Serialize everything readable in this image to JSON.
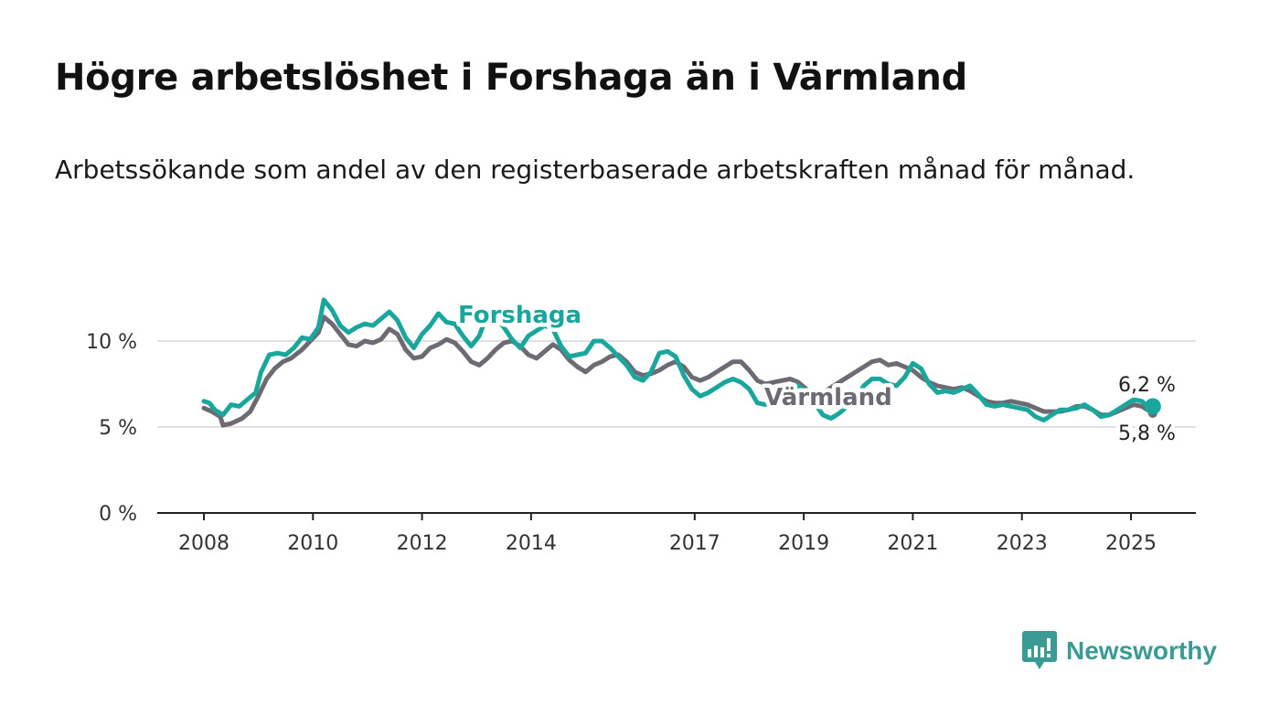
{
  "title": "Högre arbetslöshet i Forshaga än i Värmland",
  "subtitle": "Arbetssökande som andel av den registerbaserade arbetskraften månad för månad.",
  "brand": {
    "name": "Newsworthy",
    "icon": "newsworthy-logo-icon",
    "color": "#3a9a94"
  },
  "chart_data": {
    "type": "line",
    "xlabel": "",
    "ylabel": "",
    "xlim": [
      2008,
      2025.5
    ],
    "ylim": [
      0,
      13
    ],
    "grid": true,
    "y_ticks": [
      {
        "value": 0,
        "label": "0 %"
      },
      {
        "value": 5,
        "label": "5 %"
      },
      {
        "value": 10,
        "label": "10 %"
      }
    ],
    "x_ticks": [
      {
        "value": 2008,
        "label": "2008"
      },
      {
        "value": 2010,
        "label": "2010"
      },
      {
        "value": 2012,
        "label": "2012"
      },
      {
        "value": 2014,
        "label": "2014"
      },
      {
        "value": 2017,
        "label": "2017"
      },
      {
        "value": 2019,
        "label": "2019"
      },
      {
        "value": 2021,
        "label": "2021"
      },
      {
        "value": 2023,
        "label": "2023"
      },
      {
        "value": 2025,
        "label": "2025"
      }
    ],
    "series": [
      {
        "name": "Värmland",
        "color": "#6e6a73",
        "end_label": "5,8 %",
        "points": [
          [
            2008.0,
            6.1
          ],
          [
            2008.15,
            5.9
          ],
          [
            2008.3,
            5.6
          ],
          [
            2008.35,
            5.1
          ],
          [
            2008.5,
            5.2
          ],
          [
            2008.7,
            5.5
          ],
          [
            2008.85,
            5.9
          ],
          [
            2009.0,
            6.8
          ],
          [
            2009.15,
            7.8
          ],
          [
            2009.3,
            8.4
          ],
          [
            2009.45,
            8.8
          ],
          [
            2009.6,
            9.0
          ],
          [
            2009.8,
            9.5
          ],
          [
            2009.95,
            10.0
          ],
          [
            2010.1,
            10.5
          ],
          [
            2010.2,
            11.4
          ],
          [
            2010.35,
            11.0
          ],
          [
            2010.5,
            10.4
          ],
          [
            2010.65,
            9.8
          ],
          [
            2010.8,
            9.7
          ],
          [
            2010.95,
            10.0
          ],
          [
            2011.1,
            9.9
          ],
          [
            2011.25,
            10.1
          ],
          [
            2011.4,
            10.7
          ],
          [
            2011.55,
            10.4
          ],
          [
            2011.7,
            9.5
          ],
          [
            2011.85,
            9.0
          ],
          [
            2012.0,
            9.1
          ],
          [
            2012.15,
            9.6
          ],
          [
            2012.3,
            9.8
          ],
          [
            2012.45,
            10.1
          ],
          [
            2012.6,
            9.9
          ],
          [
            2012.75,
            9.4
          ],
          [
            2012.9,
            8.8
          ],
          [
            2013.05,
            8.6
          ],
          [
            2013.2,
            9.0
          ],
          [
            2013.35,
            9.5
          ],
          [
            2013.5,
            9.9
          ],
          [
            2013.65,
            10.0
          ],
          [
            2013.8,
            9.7
          ],
          [
            2013.95,
            9.2
          ],
          [
            2014.1,
            9.0
          ],
          [
            2014.25,
            9.4
          ],
          [
            2014.4,
            9.8
          ],
          [
            2014.55,
            9.5
          ],
          [
            2014.7,
            8.9
          ],
          [
            2014.85,
            8.5
          ],
          [
            2015.0,
            8.2
          ],
          [
            2015.15,
            8.6
          ],
          [
            2015.3,
            8.8
          ],
          [
            2015.45,
            9.1
          ],
          [
            2015.6,
            9.2
          ],
          [
            2015.75,
            8.8
          ],
          [
            2015.9,
            8.2
          ],
          [
            2016.05,
            8.0
          ],
          [
            2016.2,
            8.1
          ],
          [
            2016.35,
            8.3
          ],
          [
            2016.5,
            8.6
          ],
          [
            2016.65,
            8.8
          ],
          [
            2016.8,
            8.5
          ],
          [
            2016.95,
            7.9
          ],
          [
            2017.1,
            7.7
          ],
          [
            2017.25,
            7.9
          ],
          [
            2017.4,
            8.2
          ],
          [
            2017.55,
            8.5
          ],
          [
            2017.7,
            8.8
          ],
          [
            2017.85,
            8.8
          ],
          [
            2018.0,
            8.3
          ],
          [
            2018.15,
            7.7
          ],
          [
            2018.3,
            7.5
          ],
          [
            2018.45,
            7.6
          ],
          [
            2018.6,
            7.7
          ],
          [
            2018.75,
            7.8
          ],
          [
            2018.9,
            7.6
          ],
          [
            2019.05,
            7.2
          ],
          [
            2019.2,
            6.9
          ],
          [
            2019.35,
            7.0
          ],
          [
            2019.5,
            7.3
          ],
          [
            2019.65,
            7.6
          ],
          [
            2019.8,
            7.9
          ],
          [
            2019.95,
            8.2
          ],
          [
            2020.1,
            8.5
          ],
          [
            2020.25,
            8.8
          ],
          [
            2020.4,
            8.9
          ],
          [
            2020.55,
            8.6
          ],
          [
            2020.7,
            8.7
          ],
          [
            2020.85,
            8.5
          ],
          [
            2021.0,
            8.3
          ],
          [
            2021.15,
            7.9
          ],
          [
            2021.3,
            7.6
          ],
          [
            2021.45,
            7.4
          ],
          [
            2021.6,
            7.3
          ],
          [
            2021.75,
            7.2
          ],
          [
            2021.9,
            7.3
          ],
          [
            2022.05,
            7.1
          ],
          [
            2022.2,
            6.8
          ],
          [
            2022.35,
            6.5
          ],
          [
            2022.5,
            6.4
          ],
          [
            2022.65,
            6.4
          ],
          [
            2022.8,
            6.5
          ],
          [
            2022.95,
            6.4
          ],
          [
            2023.1,
            6.3
          ],
          [
            2023.25,
            6.1
          ],
          [
            2023.4,
            5.9
          ],
          [
            2023.55,
            5.9
          ],
          [
            2023.7,
            5.9
          ],
          [
            2023.85,
            6.0
          ],
          [
            2024.0,
            6.2
          ],
          [
            2024.15,
            6.2
          ],
          [
            2024.3,
            6.0
          ],
          [
            2024.45,
            5.7
          ],
          [
            2024.6,
            5.7
          ],
          [
            2024.75,
            5.9
          ],
          [
            2024.9,
            6.1
          ],
          [
            2025.05,
            6.3
          ],
          [
            2025.2,
            6.2
          ],
          [
            2025.3,
            6.0
          ],
          [
            2025.4,
            5.8
          ]
        ]
      },
      {
        "name": "Forshaga",
        "color": "#19a69c",
        "end_label": "6,2 %",
        "points": [
          [
            2008.0,
            6.5
          ],
          [
            2008.1,
            6.4
          ],
          [
            2008.2,
            6.0
          ],
          [
            2008.35,
            5.7
          ],
          [
            2008.5,
            6.3
          ],
          [
            2008.65,
            6.2
          ],
          [
            2008.8,
            6.6
          ],
          [
            2008.95,
            7.0
          ],
          [
            2009.05,
            8.2
          ],
          [
            2009.2,
            9.2
          ],
          [
            2009.35,
            9.3
          ],
          [
            2009.5,
            9.2
          ],
          [
            2009.65,
            9.6
          ],
          [
            2009.8,
            10.2
          ],
          [
            2009.95,
            10.1
          ],
          [
            2010.1,
            10.8
          ],
          [
            2010.2,
            12.4
          ],
          [
            2010.35,
            11.8
          ],
          [
            2010.5,
            10.9
          ],
          [
            2010.65,
            10.5
          ],
          [
            2010.8,
            10.8
          ],
          [
            2010.95,
            11.0
          ],
          [
            2011.1,
            10.9
          ],
          [
            2011.25,
            11.3
          ],
          [
            2011.4,
            11.7
          ],
          [
            2011.55,
            11.2
          ],
          [
            2011.7,
            10.2
          ],
          [
            2011.85,
            9.6
          ],
          [
            2012.0,
            10.4
          ],
          [
            2012.15,
            10.9
          ],
          [
            2012.3,
            11.6
          ],
          [
            2012.45,
            11.1
          ],
          [
            2012.6,
            11.0
          ],
          [
            2012.75,
            10.3
          ],
          [
            2012.9,
            9.7
          ],
          [
            2013.05,
            10.3
          ],
          [
            2013.2,
            11.6
          ],
          [
            2013.35,
            11.4
          ],
          [
            2013.5,
            10.8
          ],
          [
            2013.65,
            10.1
          ],
          [
            2013.8,
            9.6
          ],
          [
            2013.95,
            10.3
          ],
          [
            2014.1,
            10.6
          ],
          [
            2014.25,
            10.9
          ],
          [
            2014.4,
            10.7
          ],
          [
            2014.55,
            9.7
          ],
          [
            2014.7,
            9.1
          ],
          [
            2014.85,
            9.2
          ],
          [
            2015.0,
            9.3
          ],
          [
            2015.15,
            10.0
          ],
          [
            2015.3,
            10.0
          ],
          [
            2015.45,
            9.6
          ],
          [
            2015.6,
            9.1
          ],
          [
            2015.75,
            8.6
          ],
          [
            2015.9,
            7.9
          ],
          [
            2016.05,
            7.7
          ],
          [
            2016.2,
            8.2
          ],
          [
            2016.35,
            9.3
          ],
          [
            2016.5,
            9.4
          ],
          [
            2016.65,
            9.1
          ],
          [
            2016.8,
            8.0
          ],
          [
            2016.95,
            7.2
          ],
          [
            2017.1,
            6.8
          ],
          [
            2017.25,
            7.0
          ],
          [
            2017.4,
            7.3
          ],
          [
            2017.55,
            7.6
          ],
          [
            2017.7,
            7.8
          ],
          [
            2017.85,
            7.6
          ],
          [
            2018.0,
            7.2
          ],
          [
            2018.15,
            6.4
          ],
          [
            2018.3,
            6.3
          ],
          [
            2018.45,
            6.5
          ],
          [
            2018.6,
            6.6
          ],
          [
            2018.75,
            7.0
          ],
          [
            2018.9,
            7.4
          ],
          [
            2019.05,
            7.0
          ],
          [
            2019.2,
            6.4
          ],
          [
            2019.35,
            5.7
          ],
          [
            2019.5,
            5.5
          ],
          [
            2019.65,
            5.8
          ],
          [
            2019.8,
            6.2
          ],
          [
            2019.95,
            6.6
          ],
          [
            2020.1,
            7.4
          ],
          [
            2020.25,
            7.8
          ],
          [
            2020.4,
            7.8
          ],
          [
            2020.55,
            7.5
          ],
          [
            2020.7,
            7.4
          ],
          [
            2020.85,
            7.9
          ],
          [
            2021.0,
            8.7
          ],
          [
            2021.15,
            8.4
          ],
          [
            2021.3,
            7.5
          ],
          [
            2021.45,
            7.0
          ],
          [
            2021.6,
            7.1
          ],
          [
            2021.75,
            7.0
          ],
          [
            2021.9,
            7.2
          ],
          [
            2022.05,
            7.4
          ],
          [
            2022.2,
            6.9
          ],
          [
            2022.35,
            6.3
          ],
          [
            2022.5,
            6.2
          ],
          [
            2022.65,
            6.3
          ],
          [
            2022.8,
            6.2
          ],
          [
            2022.95,
            6.1
          ],
          [
            2023.1,
            6.0
          ],
          [
            2023.25,
            5.6
          ],
          [
            2023.4,
            5.4
          ],
          [
            2023.55,
            5.7
          ],
          [
            2023.7,
            6.0
          ],
          [
            2023.85,
            6.0
          ],
          [
            2024.0,
            6.1
          ],
          [
            2024.15,
            6.3
          ],
          [
            2024.3,
            6.0
          ],
          [
            2024.45,
            5.6
          ],
          [
            2024.6,
            5.7
          ],
          [
            2024.75,
            6.0
          ],
          [
            2024.9,
            6.3
          ],
          [
            2025.05,
            6.6
          ],
          [
            2025.2,
            6.5
          ],
          [
            2025.3,
            6.2
          ],
          [
            2025.4,
            6.2
          ]
        ]
      }
    ]
  }
}
